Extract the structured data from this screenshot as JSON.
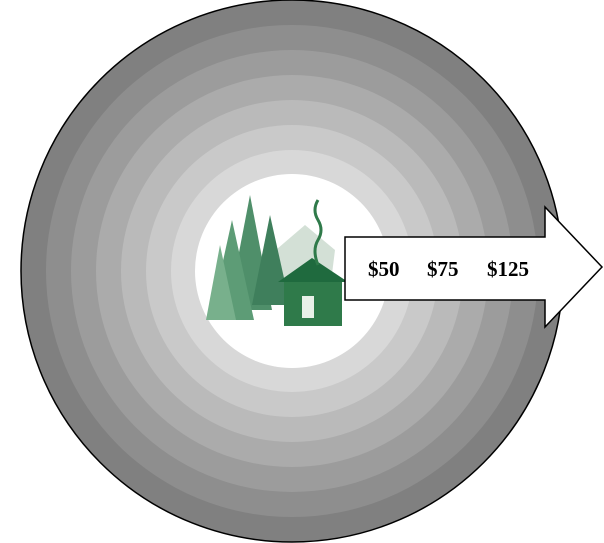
{
  "arrow": {
    "labels": [
      "$50",
      "$75",
      "$125"
    ]
  }
}
